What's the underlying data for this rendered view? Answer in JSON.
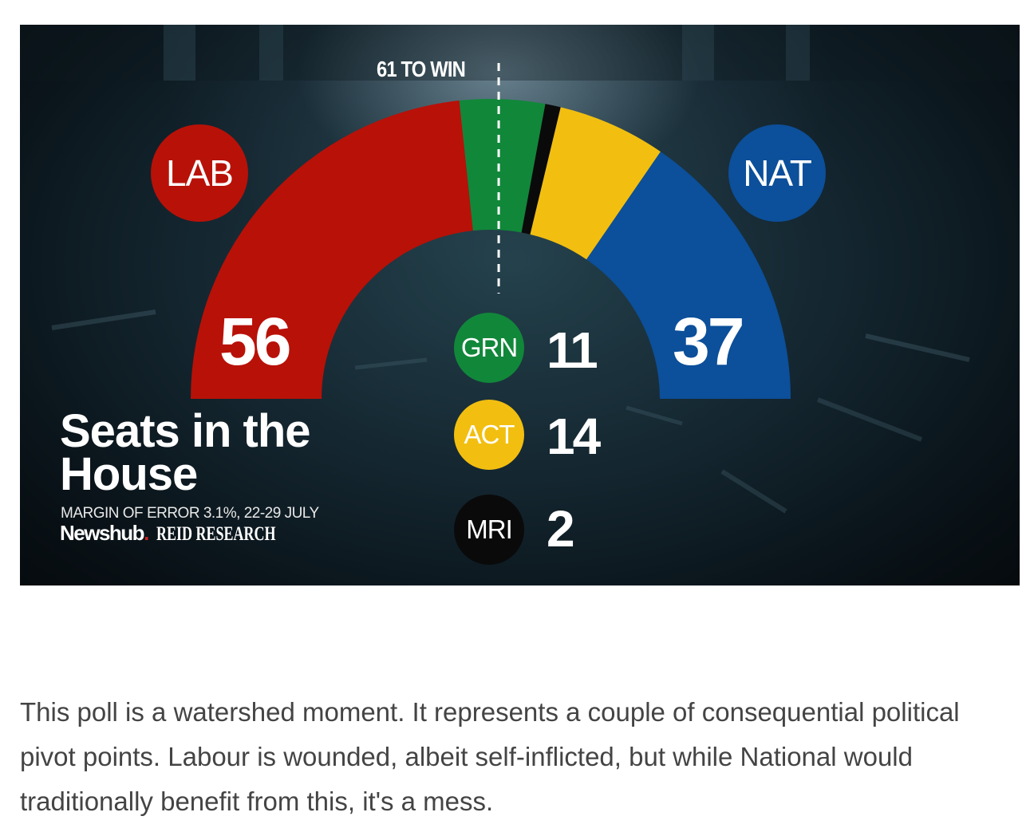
{
  "chart_data": {
    "type": "parliament-semicircle",
    "title": "Seats in the House",
    "subtitle": "MARGIN OF ERROR 3.1%, 22-29 JULY",
    "threshold_label": "61 TO WIN",
    "threshold": 61,
    "total_seats": 120,
    "series": [
      {
        "name": "LAB",
        "value": 56,
        "color": "#b81108"
      },
      {
        "name": "GRN",
        "value": 11,
        "color": "#11873a"
      },
      {
        "name": "MRI",
        "value": 2,
        "color": "#0a0a0a"
      },
      {
        "name": "ACT",
        "value": 14,
        "color": "#f2bf10"
      },
      {
        "name": "NAT",
        "value": 37,
        "color": "#0c4f9a"
      }
    ]
  },
  "source": {
    "newshub": "Newshub",
    "newshub_dot": ".",
    "pollster": "REID RESEARCH"
  },
  "article": {
    "text": "This poll is a watershed moment. It represents a couple of consequential political pivot points. Labour is wounded, albeit self-inflicted, but while National would traditionally benefit from this, it's a mess."
  }
}
